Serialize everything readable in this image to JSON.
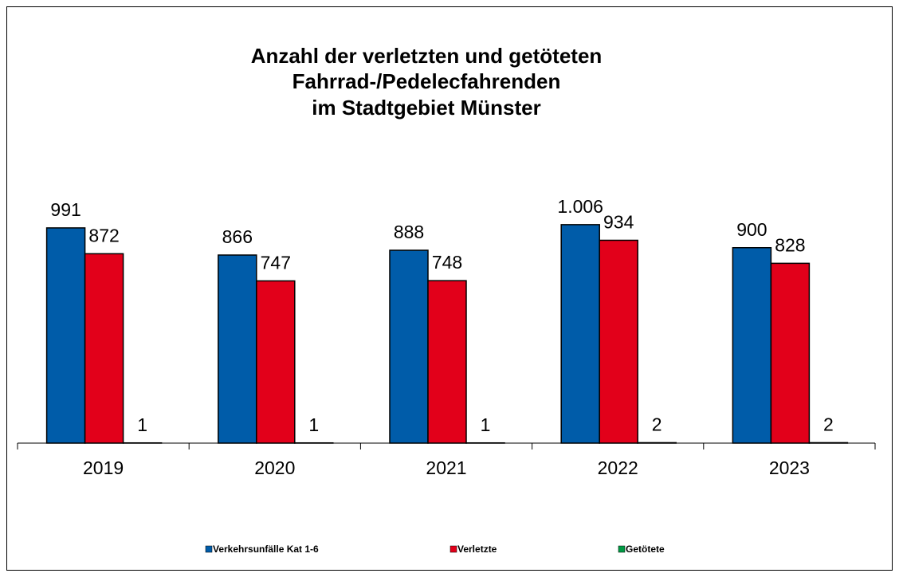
{
  "chart_data": {
    "type": "bar",
    "title": [
      "Anzahl der verletzten und getöteten",
      "Fahrrad-/Pedelecfahrenden",
      "im Stadtgebiet Münster"
    ],
    "categories": [
      "2019",
      "2020",
      "2021",
      "2022",
      "2023"
    ],
    "series": [
      {
        "name": "Verkehrsunfälle Kat 1-6",
        "color": "#005ca9",
        "values": [
          991,
          866,
          888,
          1006,
          900
        ],
        "value_labels": [
          "991",
          "866",
          "888",
          "1.006",
          "900"
        ]
      },
      {
        "name": "Verletzte",
        "color": "#e2001a",
        "values": [
          872,
          747,
          748,
          934,
          828
        ]
      },
      {
        "name": "Getötete",
        "color": "#009a44",
        "values": [
          1,
          1,
          1,
          2,
          2
        ]
      }
    ],
    "ylim": [
      0,
      1200
    ],
    "legend": "bottom"
  }
}
